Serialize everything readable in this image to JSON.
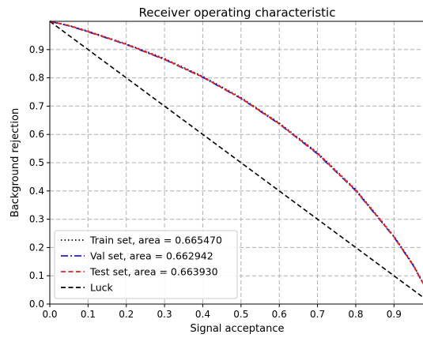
{
  "chart_data": {
    "type": "line",
    "title": "Receiver operating characteristic",
    "xlabel": "Signal acceptance",
    "ylabel": "Background rejection",
    "xlim": [
      0.0,
      0.98
    ],
    "ylim": [
      0.0,
      1.0
    ],
    "xticks": [
      "0.0",
      "0.1",
      "0.2",
      "0.3",
      "0.4",
      "0.5",
      "0.6",
      "0.7",
      "0.8",
      "0.9"
    ],
    "yticks": [
      "0.0",
      "0.1",
      "0.2",
      "0.3",
      "0.4",
      "0.5",
      "0.6",
      "0.7",
      "0.8",
      "0.9"
    ],
    "xtick_values": [
      0.0,
      0.1,
      0.2,
      0.3,
      0.4,
      0.5,
      0.6,
      0.7,
      0.8,
      0.9
    ],
    "ytick_values": [
      0.0,
      0.1,
      0.2,
      0.3,
      0.4,
      0.5,
      0.6,
      0.7,
      0.8,
      0.9
    ],
    "grid": true,
    "grid_style": "dashed",
    "legend_position": "bottom-left",
    "series": [
      {
        "name": "Train set, area = 0.665470",
        "color": "#000000",
        "line_style": "dotted",
        "x": [
          0.0,
          0.05,
          0.1,
          0.2,
          0.3,
          0.4,
          0.5,
          0.6,
          0.7,
          0.8,
          0.9,
          0.95,
          0.98
        ],
        "y": [
          1.0,
          0.985,
          0.965,
          0.92,
          0.868,
          0.805,
          0.73,
          0.64,
          0.535,
          0.405,
          0.24,
          0.14,
          0.065
        ]
      },
      {
        "name": "Val set, area = 0.662942",
        "color": "#1f1fd6",
        "line_style": "dashdot",
        "x": [
          0.0,
          0.05,
          0.1,
          0.2,
          0.3,
          0.4,
          0.5,
          0.6,
          0.7,
          0.8,
          0.9,
          0.95,
          0.98
        ],
        "y": [
          1.0,
          0.984,
          0.963,
          0.918,
          0.865,
          0.802,
          0.727,
          0.637,
          0.531,
          0.401,
          0.237,
          0.137,
          0.063
        ]
      },
      {
        "name": "Test set, area = 0.663930",
        "color": "#e8201d",
        "line_style": "dashed",
        "x": [
          0.0,
          0.05,
          0.1,
          0.2,
          0.3,
          0.4,
          0.5,
          0.6,
          0.7,
          0.8,
          0.9,
          0.95,
          0.98
        ],
        "y": [
          1.0,
          0.985,
          0.964,
          0.919,
          0.866,
          0.803,
          0.728,
          0.638,
          0.533,
          0.403,
          0.238,
          0.138,
          0.064
        ]
      },
      {
        "name": "Luck",
        "color": "#000000",
        "line_style": "dashed",
        "x": [
          0.0,
          0.98
        ],
        "y": [
          1.0,
          0.02
        ]
      }
    ]
  }
}
